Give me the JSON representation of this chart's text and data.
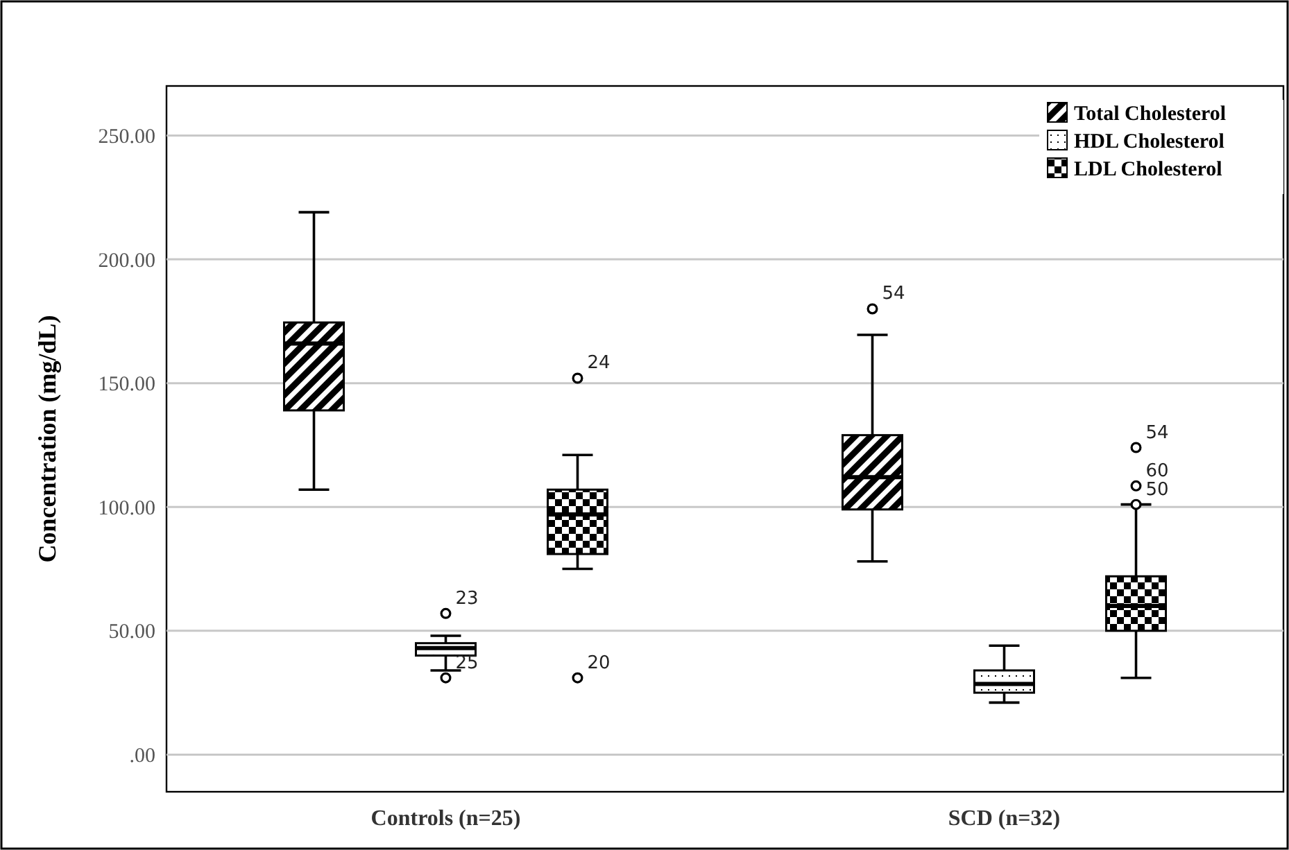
{
  "chart_data": {
    "type": "box",
    "ylabel": "Concentration (mg/dL)",
    "categories": [
      "Controls (n=25)",
      "SCD (n=32)"
    ],
    "series": [
      {
        "name": "Total Cholesterol",
        "color": "#000000",
        "boxes": [
          {
            "low": 107,
            "q1": 139,
            "median": 166,
            "q3": 174.5,
            "high": 219
          },
          {
            "low": 78,
            "q1": 99,
            "median": 112,
            "q3": 129,
            "high": 169.5,
            "outliers": [
              180
            ]
          }
        ]
      },
      {
        "name": "HDL Cholesterol",
        "color": "#000000",
        "boxes": [
          {
            "low": 34,
            "q1": 40,
            "median": 43,
            "q3": 45,
            "high": 48,
            "outliers": [
              57,
              31
            ]
          },
          {
            "low": 21,
            "q1": 25,
            "median": 28.5,
            "q3": 34,
            "high": 44
          }
        ]
      },
      {
        "name": "LDL Cholesterol",
        "color": "#000000",
        "boxes": [
          {
            "low": 75,
            "q1": 81,
            "median": 97,
            "q3": 107,
            "high": 121,
            "outliers": [
              152,
              31
            ]
          },
          {
            "low": 31,
            "q1": 50,
            "median": 60,
            "q3": 72,
            "high": 101,
            "outliers": [
              124,
              108.5,
              101
            ]
          }
        ]
      }
    ],
    "ylim": [
      -15,
      270
    ],
    "yticks": [
      {
        "value": 0,
        "label": ".00"
      },
      {
        "value": 50,
        "label": "50.00"
      },
      {
        "value": 100,
        "label": "100.00"
      },
      {
        "value": 150,
        "label": "150.00"
      },
      {
        "value": 200,
        "label": "200.00"
      },
      {
        "value": 250,
        "label": "250.00"
      }
    ],
    "grid": "y",
    "legend": "top right",
    "annotations": [
      "23",
      "25",
      "24",
      "20",
      "54",
      "54",
      "60",
      "50"
    ]
  }
}
